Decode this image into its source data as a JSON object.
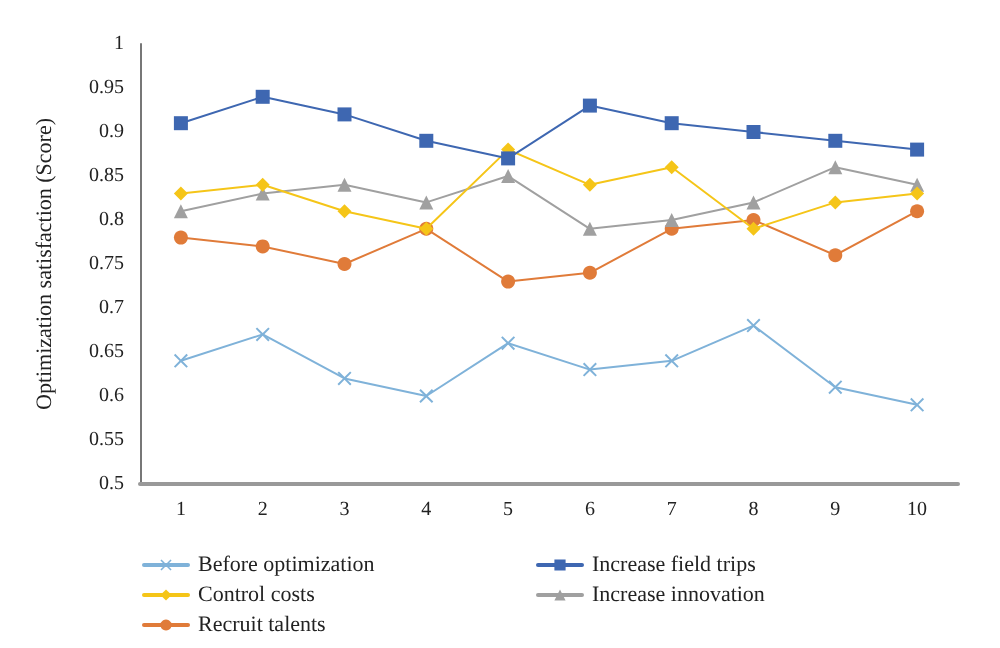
{
  "chart_data": {
    "type": "line",
    "ylabel": "Optimization satisfaction (Score)",
    "categories": [
      "1",
      "2",
      "3",
      "4",
      "5",
      "6",
      "7",
      "8",
      "9",
      "10"
    ],
    "series": [
      {
        "name": "Before optimization",
        "color": "#7fb2d9",
        "marker": "cross",
        "values": [
          0.64,
          0.67,
          0.62,
          0.6,
          0.66,
          0.63,
          0.64,
          0.68,
          0.61,
          0.59
        ]
      },
      {
        "name": "Increase field trips",
        "color": "#3e67b1",
        "marker": "square",
        "values": [
          0.91,
          0.94,
          0.92,
          0.89,
          0.87,
          0.93,
          0.91,
          0.9,
          0.89,
          0.88
        ]
      },
      {
        "name": "Control costs",
        "color": "#f5c518",
        "marker": "diamond",
        "values": [
          0.83,
          0.84,
          0.81,
          0.79,
          0.88,
          0.84,
          0.86,
          0.79,
          0.82,
          0.83
        ]
      },
      {
        "name": "Increase innovation",
        "color": "#a0a0a0",
        "marker": "triangle",
        "values": [
          0.81,
          0.83,
          0.84,
          0.82,
          0.85,
          0.79,
          0.8,
          0.82,
          0.86,
          0.84
        ]
      },
      {
        "name": "Recruit talents",
        "color": "#e07b39",
        "marker": "circle",
        "values": [
          0.78,
          0.77,
          0.75,
          0.79,
          0.73,
          0.74,
          0.79,
          0.8,
          0.76,
          0.81
        ]
      }
    ],
    "ylim": [
      0.5,
      1
    ],
    "yticks": [
      0.5,
      0.55,
      0.6,
      0.65,
      0.7,
      0.75,
      0.8,
      0.85,
      0.9,
      0.95,
      1
    ],
    "grid": false,
    "legend": "bottom",
    "line_style": "solid"
  }
}
